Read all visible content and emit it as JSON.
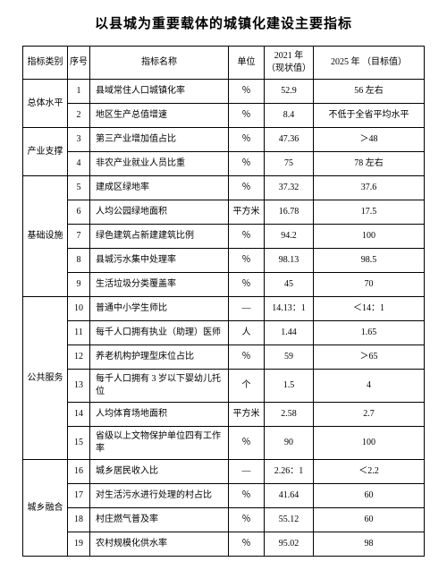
{
  "title": "以县城为重要载体的城镇化建设主要指标",
  "headers": {
    "category": "指标类别",
    "seq": "序号",
    "name": "指标名称",
    "unit": "单位",
    "y2021": "2021 年\n（现状值）",
    "y2025": "2025 年\n（目标值）"
  },
  "table": {
    "border_color": "#000000",
    "font_size": 10,
    "header_font_size": 10
  },
  "rows": [
    {
      "category": "总体水平",
      "seq": "1",
      "name": "县域常住人口城镇化率",
      "unit": "％",
      "y2021": "52.9",
      "y2025": "56 左右"
    },
    {
      "category": "",
      "seq": "2",
      "name": "地区生产总值增速",
      "unit": "％",
      "y2021": "8.4",
      "y2025": "不低于全省平均水平"
    },
    {
      "category": "产业支撑",
      "seq": "3",
      "name": "第三产业增加值占比",
      "unit": "％",
      "y2021": "47.36",
      "y2025": "＞48"
    },
    {
      "category": "",
      "seq": "4",
      "name": "非农产业就业人员比重",
      "unit": "％",
      "y2021": "75",
      "y2025": "78 左右"
    },
    {
      "category": "基础设施",
      "seq": "5",
      "name": "建成区绿地率",
      "unit": "％",
      "y2021": "37.32",
      "y2025": "37.6"
    },
    {
      "category": "",
      "seq": "6",
      "name": "人均公园绿地面积",
      "unit": "平方米",
      "y2021": "16.78",
      "y2025": "17.5"
    },
    {
      "category": "",
      "seq": "7",
      "name": "绿色建筑占新建建筑比例",
      "unit": "％",
      "y2021": "94.2",
      "y2025": "100"
    },
    {
      "category": "",
      "seq": "8",
      "name": "县城污水集中处理率",
      "unit": "％",
      "y2021": "98.13",
      "y2025": "98.5"
    },
    {
      "category": "",
      "seq": "9",
      "name": "生活垃圾分类覆盖率",
      "unit": "％",
      "y2021": "45",
      "y2025": "70"
    },
    {
      "category": "公共服务",
      "seq": "10",
      "name": "普通中小学生师比",
      "unit": "—",
      "y2021": "14.13：1",
      "y2025": "＜14：1"
    },
    {
      "category": "",
      "seq": "11",
      "name": "每千人口拥有执业（助理）医师",
      "unit": "人",
      "y2021": "1.44",
      "y2025": "1.65"
    },
    {
      "category": "",
      "seq": "12",
      "name": "养老机构护理型床位占比",
      "unit": "％",
      "y2021": "59",
      "y2025": "＞65"
    },
    {
      "category": "",
      "seq": "13",
      "name": "每千人口拥有 3 岁以下婴幼儿托位",
      "unit": "个",
      "y2021": "1.5",
      "y2025": "4"
    },
    {
      "category": "",
      "seq": "14",
      "name": "人均体育场地面积",
      "unit": "平方米",
      "y2021": "2.58",
      "y2025": "2.7"
    },
    {
      "category": "",
      "seq": "15",
      "name": "省级以上文物保护单位四有工作率",
      "unit": "％",
      "y2021": "90",
      "y2025": "100"
    },
    {
      "category": "城乡融合",
      "seq": "16",
      "name": "城乡居民收入比",
      "unit": "—",
      "y2021": "2.26：1",
      "y2025": "＜2.2"
    },
    {
      "category": "",
      "seq": "17",
      "name": "对生活污水进行处理的村占比",
      "unit": "％",
      "y2021": "41.64",
      "y2025": "60"
    },
    {
      "category": "",
      "seq": "18",
      "name": "村庄燃气普及率",
      "unit": "％",
      "y2021": "55.12",
      "y2025": "60"
    },
    {
      "category": "",
      "seq": "19",
      "name": "农村规模化供水率",
      "unit": "％",
      "y2021": "95.02",
      "y2025": "98"
    }
  ],
  "category_spans": [
    {
      "label": "总体水平",
      "rowspan": 2
    },
    {
      "label": "产业支撑",
      "rowspan": 2
    },
    {
      "label": "基础设施",
      "rowspan": 5
    },
    {
      "label": "公共服务",
      "rowspan": 6
    },
    {
      "label": "城乡融合",
      "rowspan": 4
    }
  ]
}
